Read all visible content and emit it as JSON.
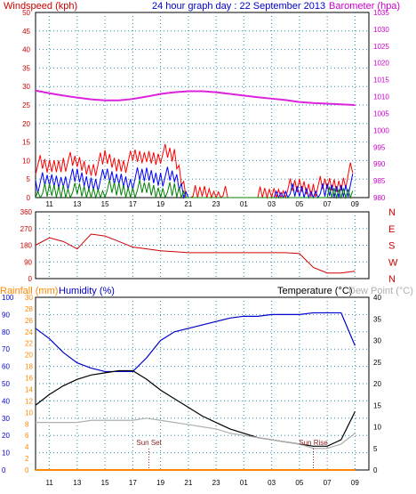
{
  "header": {
    "windspeed_label": "Windspeed (kph)",
    "title": "24 hour graph day : 22 September 2013",
    "barometer_label": "Barometer (hpa)"
  },
  "labels": {
    "rainfall": "Rainfall (mm)",
    "humidity": "Humidity (%)",
    "temperature": "Temperature (°C)",
    "dewpoint": "Dew Point (°C)",
    "sun_set": "Sun Set",
    "sun_rise": "Sun Rise"
  },
  "colors": {
    "frame": "#000000",
    "grid": "#2b8fb3",
    "wind_axis": "#cc0000",
    "baro_axis": "#cc00cc",
    "wind_gust": "#ff0000",
    "wind_avg": "#0000ff",
    "wind_min": "#008000",
    "baro_line": "#dd22dd",
    "direction": "#cc0000",
    "humidity": "#0000cc",
    "temperature": "#000000",
    "dewpoint": "#b0b0b0",
    "rain": "#ff8800",
    "rain_axis": "#ff8800",
    "hum_axis": "#0000cc",
    "sun": "#8b2222"
  },
  "x_ticks": [
    "11",
    "13",
    "15",
    "17",
    "19",
    "21",
    "23",
    "01",
    "03",
    "05",
    "07",
    "09"
  ],
  "chart_data": [
    {
      "type": "line",
      "panel": "wind-barometer",
      "title": "24 hour graph day : 22 September 2013",
      "ylabel_left": "Windspeed (kph)",
      "ylabel_right": "Barometer (hpa)",
      "ylim_left": [
        0,
        50
      ],
      "ylim_right": [
        980,
        1035
      ],
      "y_ticks_left": [
        0,
        5,
        10,
        15,
        20,
        25,
        30,
        35,
        40,
        45,
        50
      ],
      "y_ticks_right": [
        980,
        985,
        990,
        995,
        1000,
        1005,
        1010,
        1015,
        1020,
        1025,
        1030,
        1035
      ],
      "x": [
        "10",
        "11",
        "12",
        "13",
        "14",
        "15",
        "16",
        "17",
        "18",
        "19",
        "20",
        "21",
        "22",
        "23",
        "00",
        "01",
        "02",
        "03",
        "04",
        "05",
        "06",
        "07",
        "08",
        "09"
      ],
      "series": [
        {
          "name": "Barometer (hpa)",
          "axis": "right",
          "values": [
            1011.8,
            1011.0,
            1010.3,
            1009.7,
            1009.2,
            1008.9,
            1008.9,
            1009.3,
            1010.0,
            1010.8,
            1011.3,
            1011.6,
            1011.6,
            1011.3,
            1010.8,
            1010.3,
            1009.8,
            1009.4,
            1009.0,
            1008.4,
            1008.1,
            1007.9,
            1007.7,
            1007.5
          ]
        },
        {
          "name": "Windspeed (kph)",
          "axis": "left",
          "values": [
            9,
            8,
            10,
            9,
            8,
            10,
            9,
            10,
            11,
            12,
            11,
            0,
            1,
            1,
            0,
            0,
            0,
            1,
            2,
            3,
            3,
            3,
            4,
            8
          ]
        },
        {
          "name": "Windspeed avg (kph)",
          "axis": "left",
          "values": [
            4,
            4,
            5,
            5,
            4,
            5,
            5,
            5,
            6,
            6,
            5,
            0,
            0,
            0,
            0,
            0,
            0,
            0,
            1,
            1,
            1,
            1,
            2,
            4
          ]
        },
        {
          "name": "Windspeed min (kph)",
          "axis": "left",
          "values": [
            1,
            1,
            2,
            1,
            1,
            2,
            2,
            2,
            2,
            2,
            1,
            0,
            0,
            0,
            0,
            0,
            0,
            0,
            0,
            0,
            0,
            0,
            1,
            2
          ]
        }
      ]
    },
    {
      "type": "line",
      "panel": "wind-direction",
      "ylim": [
        0,
        360
      ],
      "y_ticks": [
        0,
        90,
        180,
        270,
        360
      ],
      "right_labels": [
        "N",
        "W",
        "S",
        "E",
        "N"
      ],
      "x": [
        "10",
        "11",
        "12",
        "13",
        "14",
        "15",
        "16",
        "17",
        "18",
        "19",
        "20",
        "21",
        "22",
        "23",
        "00",
        "01",
        "02",
        "03",
        "04",
        "05",
        "06",
        "07",
        "08",
        "09"
      ],
      "values": [
        180,
        220,
        200,
        160,
        240,
        230,
        200,
        170,
        160,
        150,
        145,
        140,
        140,
        140,
        140,
        140,
        140,
        140,
        140,
        135,
        60,
        30,
        30,
        40
      ]
    },
    {
      "type": "line",
      "panel": "rain-humidity-temperature",
      "ylim_humidity": [
        0,
        100
      ],
      "ylim_rain": [
        0,
        30
      ],
      "ylim_temperature": [
        0,
        40
      ],
      "y_ticks_humidity": [
        0,
        10,
        20,
        30,
        40,
        50,
        60,
        70,
        80,
        90,
        100
      ],
      "y_ticks_rain": [
        0,
        2,
        4,
        6,
        8,
        10,
        12,
        14,
        16,
        18,
        20,
        22,
        24,
        26,
        28,
        30
      ],
      "y_ticks_temperature": [
        0,
        5,
        10,
        15,
        20,
        25,
        30,
        35,
        40
      ],
      "x": [
        "10",
        "11",
        "12",
        "13",
        "14",
        "15",
        "16",
        "17",
        "18",
        "19",
        "20",
        "21",
        "22",
        "23",
        "00",
        "01",
        "02",
        "03",
        "04",
        "05",
        "06",
        "07",
        "08",
        "09"
      ],
      "series": [
        {
          "name": "Humidity (%)",
          "axis": "humidity",
          "values": [
            82,
            76,
            68,
            62,
            59,
            57,
            57,
            57,
            65,
            75,
            80,
            82,
            84,
            86,
            88,
            89,
            89,
            90,
            90,
            90,
            91,
            91,
            91,
            72
          ]
        },
        {
          "name": "Temperature (°C)",
          "axis": "temperature",
          "values": [
            15,
            17.5,
            19.5,
            21,
            22,
            22.5,
            23,
            23,
            21,
            18.5,
            16.5,
            14.5,
            12.5,
            11,
            9.5,
            8.5,
            7.5,
            7,
            6.5,
            6,
            5.5,
            5.5,
            7,
            13.5
          ]
        },
        {
          "name": "Dew Point (°C)",
          "axis": "temperature",
          "values": [
            11,
            11,
            11,
            11,
            11.5,
            11.5,
            11.5,
            11.5,
            12,
            11.5,
            11,
            10.5,
            10,
            9.5,
            8.5,
            8,
            7.5,
            7,
            6.5,
            6,
            5,
            5,
            6,
            8.5
          ]
        },
        {
          "name": "Rainfall (mm)",
          "axis": "rain",
          "values": [
            0,
            0,
            0,
            0,
            0,
            0,
            0,
            0,
            0,
            0,
            0,
            0,
            0,
            0,
            0,
            0,
            0,
            0,
            0,
            0,
            0,
            0,
            0,
            0
          ]
        }
      ],
      "annotations": [
        {
          "label": "Sun Set",
          "x": "18:10"
        },
        {
          "label": "Sun Rise",
          "x": "06:00"
        }
      ]
    }
  ]
}
